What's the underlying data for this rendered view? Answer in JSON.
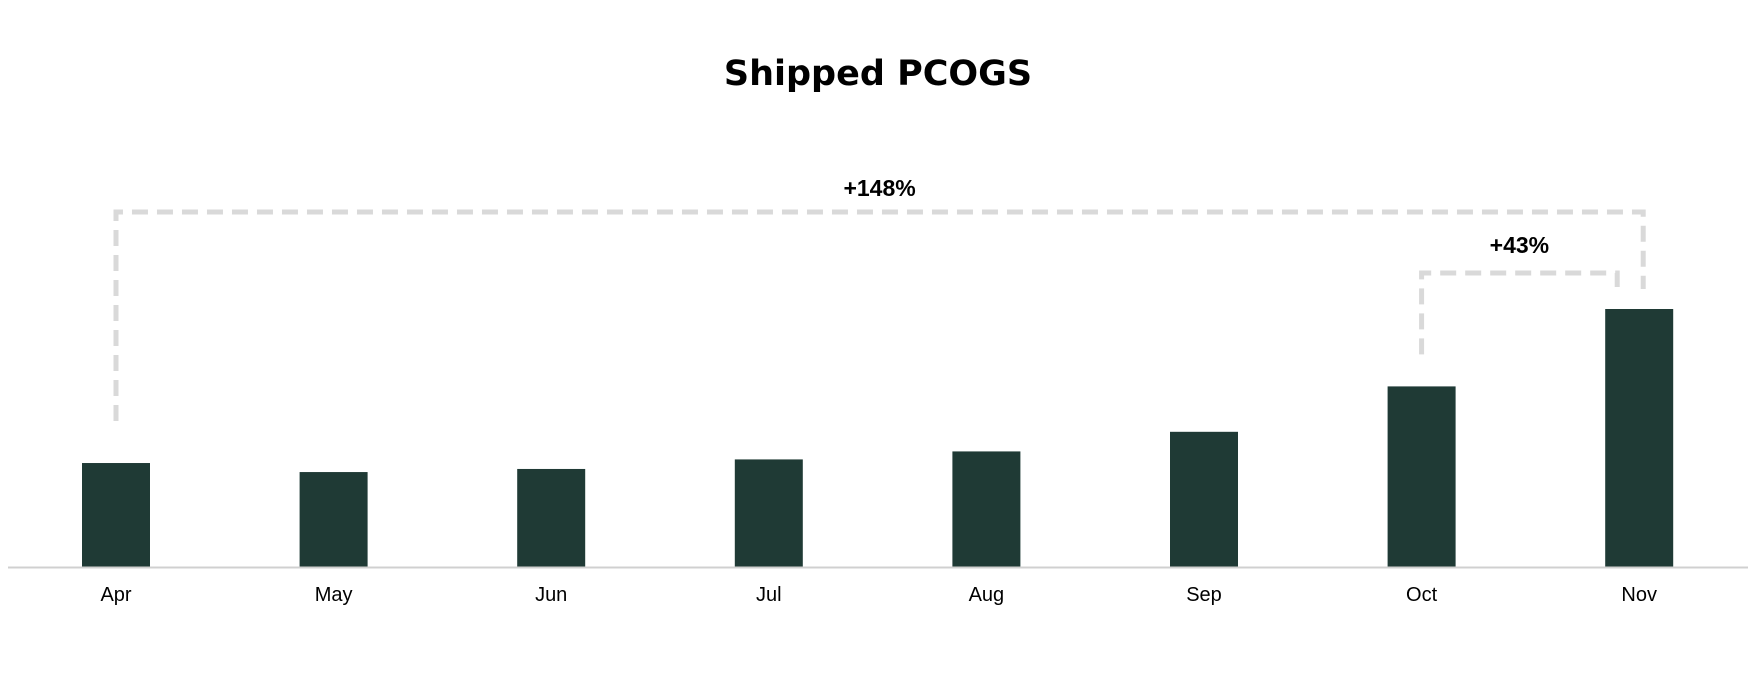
{
  "colors": {
    "bar": "#1f3a35",
    "bracket": "#d9d9d9",
    "axis": "#d0d0d0"
  },
  "chart_data": {
    "type": "bar",
    "title": "Shipped PCOGS",
    "xlabel": "",
    "ylabel": "",
    "categories": [
      "Apr",
      "May",
      "Jun",
      "Jul",
      "Aug",
      "Sep",
      "Oct",
      "Nov"
    ],
    "values": [
      40.3,
      36.8,
      38.0,
      41.7,
      44.8,
      52.4,
      70.0,
      100.0
    ],
    "ylim": [
      0,
      100
    ],
    "grid": false,
    "legend": "none",
    "annotations": [
      {
        "label": "+148%",
        "from": "Apr",
        "to": "Nov"
      },
      {
        "label": "+43%",
        "from": "Oct",
        "to": "Nov"
      }
    ]
  }
}
